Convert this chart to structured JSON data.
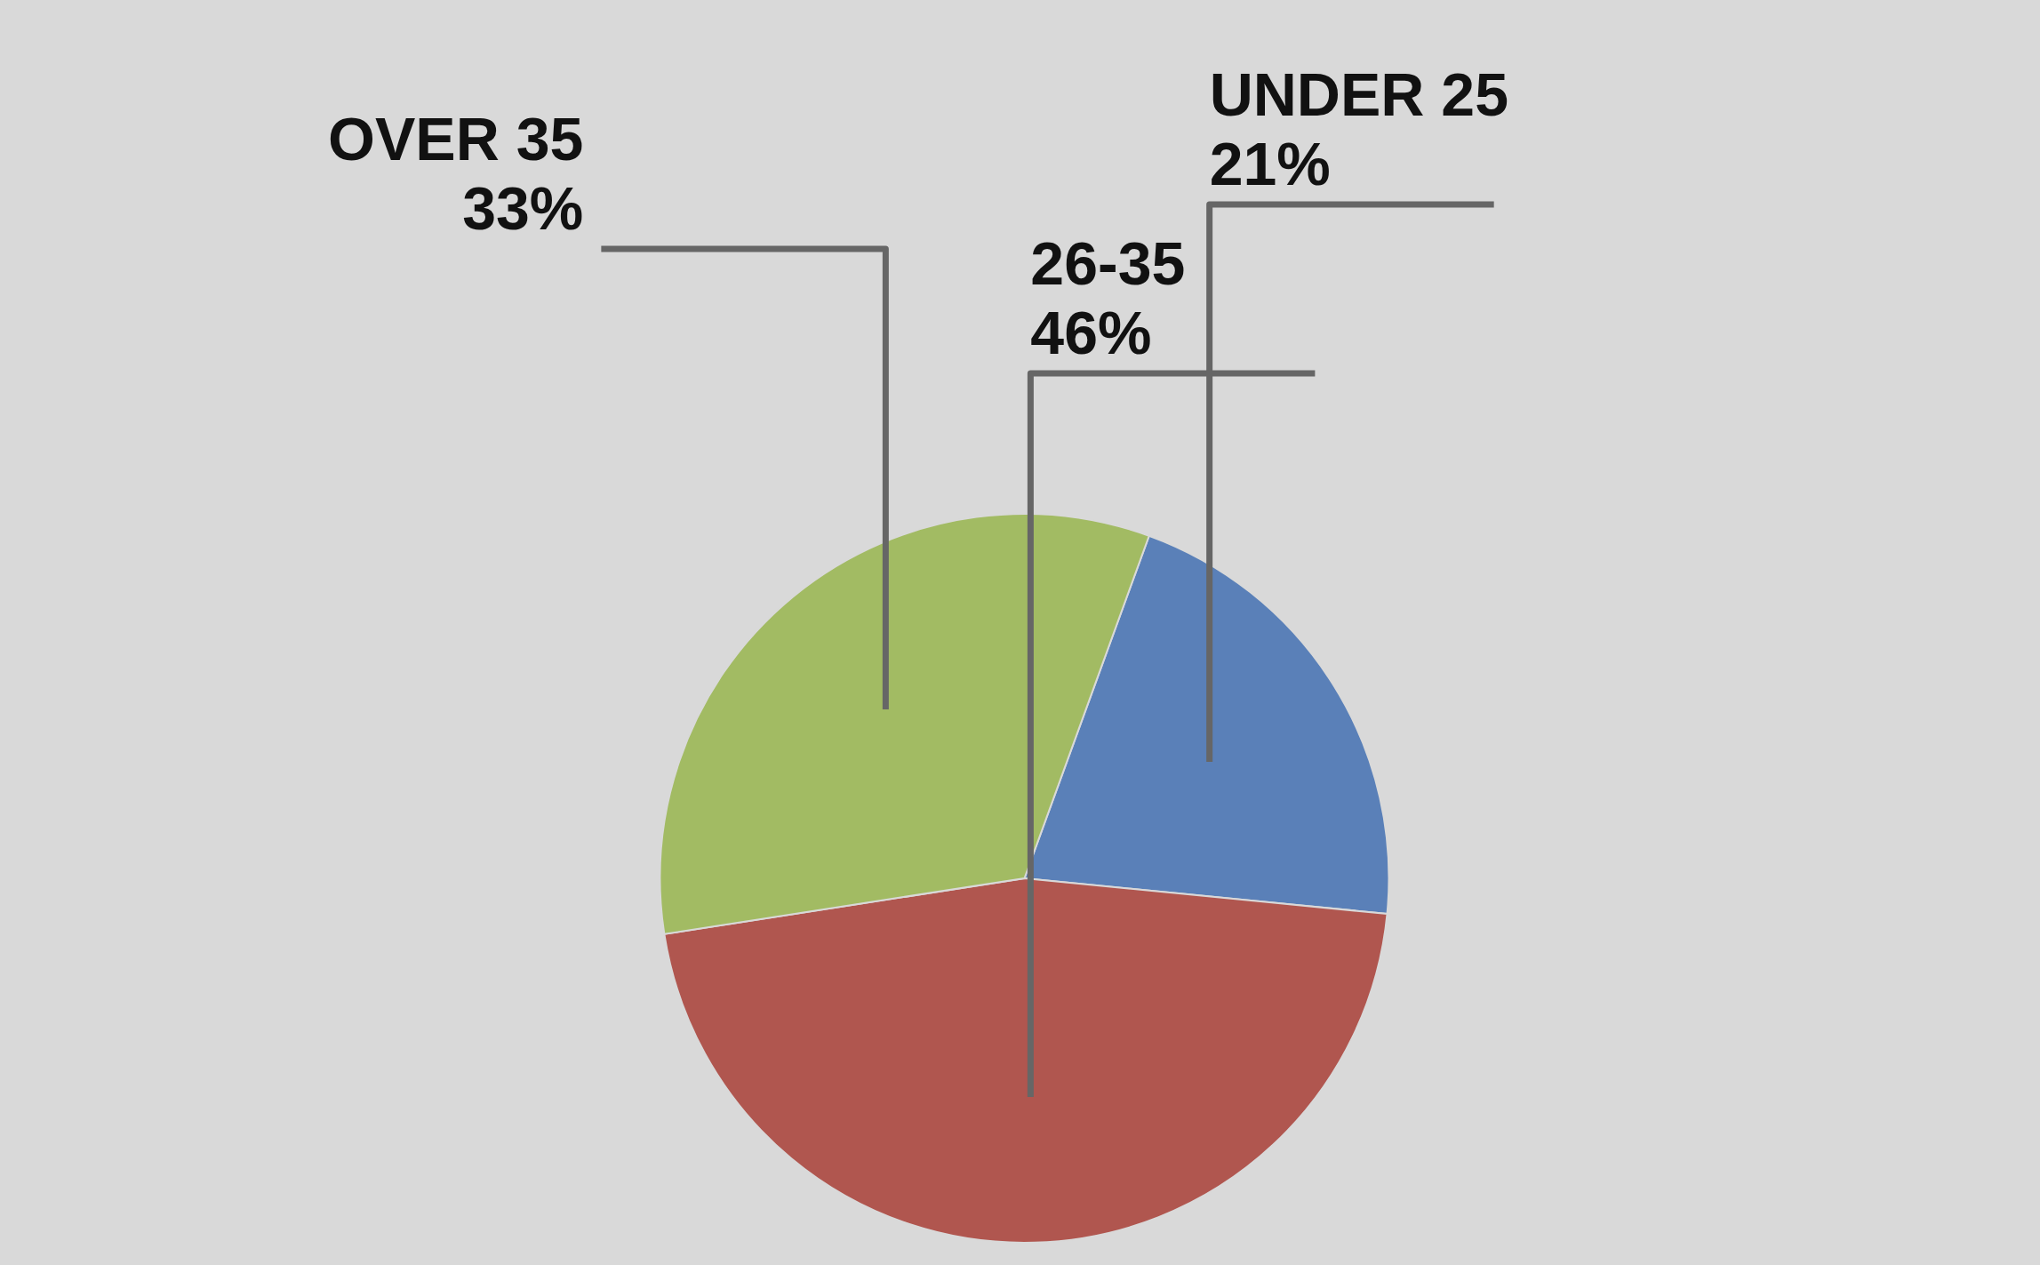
{
  "chart_data": {
    "type": "pie",
    "categories": [
      "UNDER 25",
      "26-35",
      "OVER 35"
    ],
    "values": [
      21,
      46,
      33
    ],
    "colors": [
      "#5a80b8",
      "#b0564f",
      "#a2bb63"
    ],
    "value_labels": [
      "21%",
      "46%",
      "33%"
    ]
  }
}
